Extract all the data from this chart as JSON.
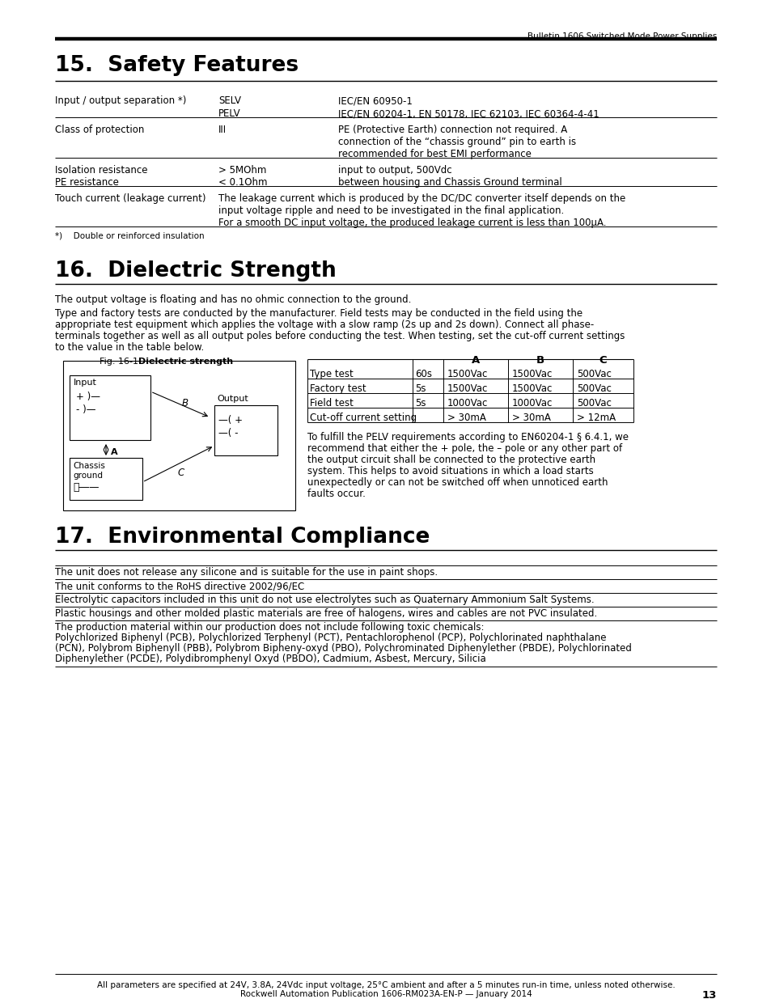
{
  "header_right": "Bulletin 1606 Switched Mode Power Supplies",
  "section15_title": "15.  Safety Features",
  "section16_title": "16.  Dielectric Strength",
  "section17_title": "17.  Environmental Compliance",
  "dielectric_fig_label": "Fig. 16-1",
  "dielectric_fig_title": "Dielectric strength",
  "dielectric_table_rows": [
    [
      "Type test",
      "60s",
      "1500Vac",
      "1500Vac",
      "500Vac"
    ],
    [
      "Factory test",
      "5s",
      "1500Vac",
      "1500Vac",
      "500Vac"
    ],
    [
      "Field test",
      "5s",
      "1000Vac",
      "1000Vac",
      "500Vac"
    ],
    [
      "Cut-off current setting",
      "",
      "> 30mA",
      "> 30mA",
      "> 12mA"
    ]
  ],
  "dielectric_note_lines": [
    "To fulfill the PELV requirements according to EN60204-1 § 6.4.1, we",
    "recommend that either the + pole, the – pole or any other part of",
    "the output circuit shall be connected to the protective earth",
    "system. This helps to avoid situations in which a load starts",
    "unexpectedly or can not be switched off when unnoticed earth",
    "faults occur."
  ],
  "env_rows": [
    [
      "The unit does not release any silicone and is suitable for the use in paint shops."
    ],
    [
      "The unit conforms to the RoHS directive 2002/96/EC"
    ],
    [
      "Electrolytic capacitors included in this unit do not use electrolytes such as Quaternary Ammonium Salt Systems."
    ],
    [
      "Plastic housings and other molded plastic materials are free of halogens, wires and cables are not PVC insulated."
    ],
    [
      "The production material within our production does not include following toxic chemicals:",
      "Polychlorized Biphenyl (PCB), Polychlorized Terphenyl (PCT), Pentachlorophenol (PCP), Polychlorinated naphthalane",
      "(PCN), Polybrom Biphenyll (PBB), Polybrom Bipheny-oxyd (PBO), Polychrominated Diphenylether (PBDE), Polychlorinated",
      "Diphenylether (PCDE), Polydibromphenyl Oxyd (PBDO), Cadmium, Asbest, Mercury, Silicia"
    ]
  ],
  "footer_text": "All parameters are specified at 24V, 3.8A, 24Vdc input voltage, 25°C ambient and after a 5 minutes run-in time, unless noted otherwise.",
  "footer_text2": "Rockwell Automation Publication 1606-RM023A-EN-P — January 2014",
  "footer_page": "13",
  "lm": 68,
  "rm": 886,
  "body_fs": 8.5,
  "title_fs": 19.0,
  "bg_color": "#ffffff"
}
